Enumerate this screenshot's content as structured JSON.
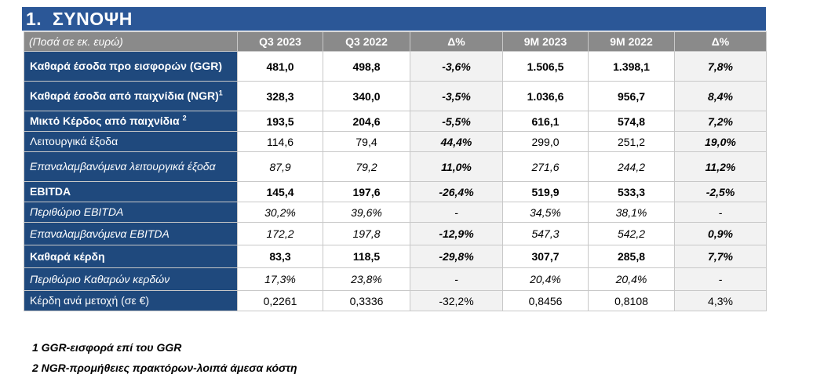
{
  "section": {
    "title": "1.  ΣΥΝΟΨΗ"
  },
  "table": {
    "headers": [
      "(Ποσά σε εκ. ευρώ)",
      "Q3 2023",
      "Q3 2022",
      "Δ%",
      "9M 2023",
      "9M 2022",
      "Δ%"
    ],
    "rows": [
      {
        "label": "Καθαρά έσοδα προ εισφορών (GGR)",
        "sup": "",
        "values": [
          "481,0",
          "498,8",
          "-3,6%",
          "1.506,5",
          "1.398,1",
          "7,8%"
        ]
      },
      {
        "label": "Καθαρά έσοδα από παιχνίδια (NGR)",
        "sup": "1",
        "values": [
          "328,3",
          "340,0",
          "-3,5%",
          "1.036,6",
          "956,7",
          "8,4%"
        ]
      },
      {
        "label": "Μικτό Κέρδος από παιχνίδια",
        "sup": "2",
        "values": [
          "193,5",
          "204,6",
          "-5,5%",
          "616,1",
          "574,8",
          "7,2%"
        ]
      },
      {
        "label": "Λειτουργικά έξοδα",
        "sup": "",
        "values": [
          "114,6",
          "79,4",
          "44,4%",
          "299,0",
          "251,2",
          "19,0%"
        ]
      },
      {
        "label": "Επαναλαμβανόμενα λειτουργικά έξοδα",
        "sup": "",
        "values": [
          "87,9",
          "79,2",
          "11,0%",
          "271,6",
          "244,2",
          "11,2%"
        ]
      },
      {
        "label": "EBITDA",
        "sup": "",
        "values": [
          "145,4",
          "197,6",
          "-26,4%",
          "519,9",
          "533,3",
          "-2,5%"
        ]
      },
      {
        "label": "Περιθώριο EBITDA",
        "sup": "",
        "values": [
          "30,2%",
          "39,6%",
          "-",
          "34,5%",
          "38,1%",
          "-"
        ]
      },
      {
        "label": "Επαναλαμβανόμενα EBITDA",
        "sup": "",
        "values": [
          "172,2",
          "197,8",
          "-12,9%",
          "547,3",
          "542,2",
          "0,9%"
        ]
      },
      {
        "label": "Καθαρά κέρδη",
        "sup": "",
        "values": [
          "83,3",
          "118,5",
          "-29,8%",
          "307,7",
          "285,8",
          "7,7%"
        ]
      },
      {
        "label": "Περιθώριο Καθαρών κερδών",
        "sup": "",
        "values": [
          "17,3%",
          "23,8%",
          "-",
          "20,4%",
          "20,4%",
          "-"
        ]
      },
      {
        "label": "Κέρδη ανά μετοχή (σε €)",
        "sup": "",
        "values": [
          "0,2261",
          "0,3336",
          "-32,2%",
          "0,8456",
          "0,8108",
          "4,3%"
        ]
      }
    ]
  },
  "footnotes": [
    "1 GGR-εισφορά επί του GGR",
    "2 NGR-προμήθειες πρακτόρων-λοιπά άμεσα κόστη"
  ],
  "colors": {
    "title_bar": "#2b5797",
    "label_cells": "#1f497d",
    "header_row": "#8a8a8a",
    "alt_column": "#f2f2f2"
  }
}
